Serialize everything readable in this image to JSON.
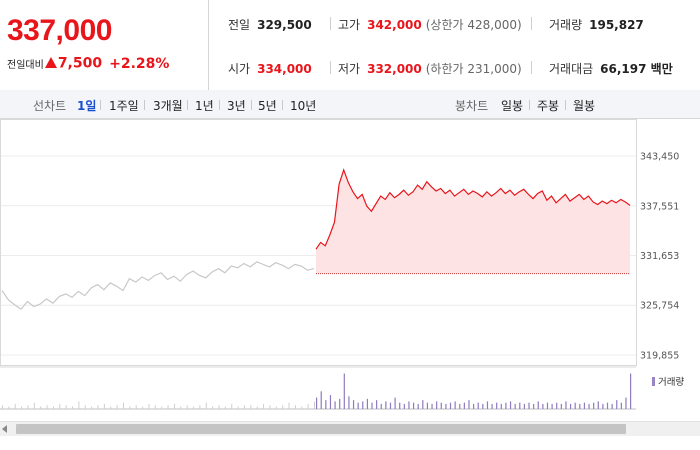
{
  "quote": {
    "price": "337,000",
    "change_label": "전일대비",
    "change_value": "7,500",
    "change_rate": "+2.28%",
    "prev_close_label": "전일",
    "prev_close": "329,500",
    "high_label": "고가",
    "high": "342,000",
    "upper_limit": "(상한가 428,000)",
    "volume_label": "거래량",
    "volume": "195,827",
    "open_label": "시가",
    "open": "334,000",
    "low_label": "저가",
    "low": "332,000",
    "lower_limit": "(하한가 231,000)",
    "turnover_label": "거래대금",
    "turnover": "66,197 백만"
  },
  "toolbar": {
    "line_title": "선차트",
    "line_periods": [
      "1일",
      "1주일",
      "3개월",
      "1년",
      "3년",
      "5년",
      "10년"
    ],
    "line_active": "1일",
    "candle_title": "봉차트",
    "candle_periods": [
      "일봉",
      "주봉",
      "월봉"
    ]
  },
  "colors": {
    "up": "#e8151b",
    "prev_day_line": "#c8c8c8",
    "area_fill": "#fde3e4",
    "volume_today": "#8f7bbf",
    "volume_prev": "#cfcfcf",
    "active_tab": "#1a4fcf"
  },
  "chart_data": {
    "type": "line",
    "y_ticks": [
      "343,450",
      "337,551",
      "331,653",
      "325,754",
      "319,855"
    ],
    "ylim": [
      319855,
      343450
    ],
    "prev_close_reference": 329500,
    "grid": true,
    "series": [
      {
        "values": [
          327500,
          326400,
          325800,
          325300,
          326200,
          325600,
          325900,
          326500,
          326000,
          326800,
          327100,
          326700,
          327400,
          326900,
          327800,
          328200,
          327600,
          328400,
          328000,
          327500,
          328900,
          328500,
          329100,
          328700,
          329300,
          329600,
          328800,
          329200,
          328600,
          329400,
          329800,
          329300,
          329000,
          329700,
          330100,
          329600,
          330400,
          330200,
          330700,
          330300,
          330900,
          330600,
          330300,
          330800,
          330500,
          330100,
          330600,
          330400,
          329900,
          330100
        ]
      },
      {
        "values": [
          332400,
          333200,
          332800,
          334100,
          335600,
          340100,
          341800,
          340300,
          339200,
          338400,
          338900,
          337500,
          336900,
          337800,
          338700,
          338300,
          339100,
          338500,
          338900,
          339400,
          338800,
          339200,
          340000,
          339500,
          340400,
          339800,
          339300,
          339600,
          339000,
          339400,
          338700,
          339100,
          339500,
          338900,
          339300,
          339000,
          338600,
          339200,
          338700,
          339100,
          339600,
          339000,
          339400,
          338800,
          339200,
          339500,
          338900,
          338400,
          339000,
          339300,
          338200,
          338700,
          337900,
          338400,
          338900,
          338100,
          338500,
          338900,
          338300,
          338700,
          338000,
          337700,
          338100,
          337800,
          338200,
          337900,
          338300,
          338000,
          337600
        ]
      }
    ],
    "volume": {
      "legend": "거래량",
      "prev_day": [
        3,
        2,
        4,
        2,
        3,
        5,
        2,
        3,
        2,
        4,
        3,
        2,
        6,
        3,
        2,
        3,
        4,
        2,
        3,
        5,
        2,
        3,
        2,
        4,
        3,
        2,
        3,
        4,
        2,
        3,
        2,
        3,
        5,
        2,
        3,
        2,
        4,
        2,
        3,
        3,
        2,
        4,
        3,
        2,
        3,
        5,
        3,
        2,
        4,
        6
      ],
      "today": [
        9,
        14,
        7,
        11,
        6,
        8,
        28,
        10,
        7,
        5,
        6,
        8,
        5,
        7,
        4,
        6,
        5,
        9,
        5,
        4,
        6,
        5,
        4,
        7,
        5,
        4,
        6,
        5,
        4,
        5,
        6,
        4,
        5,
        7,
        4,
        5,
        4,
        6,
        4,
        5,
        4,
        5,
        6,
        4,
        5,
        4,
        5,
        4,
        6,
        4,
        5,
        4,
        5,
        4,
        6,
        4,
        5,
        4,
        5,
        4,
        5,
        6,
        4,
        5,
        4,
        7,
        5,
        9,
        28
      ]
    }
  }
}
